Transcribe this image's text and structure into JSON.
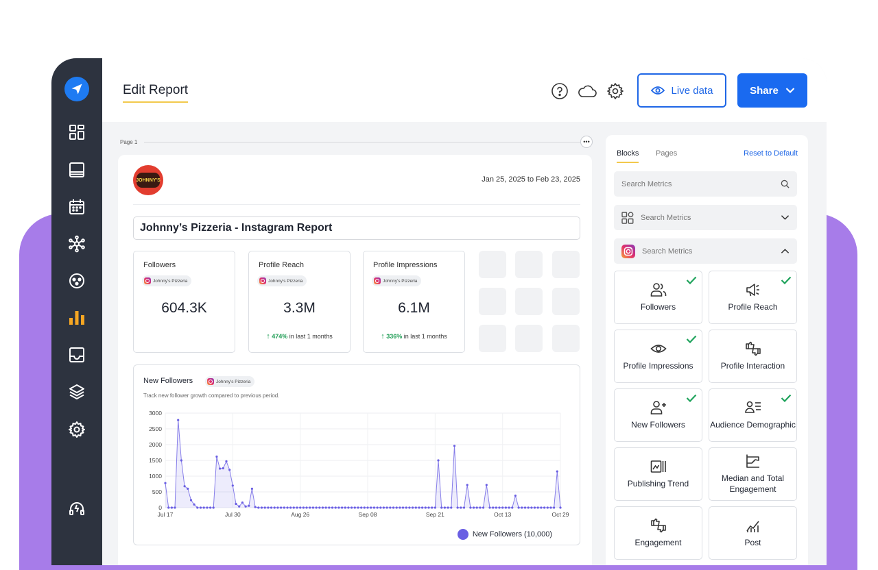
{
  "app": {
    "title": "Edit Report",
    "live_data_label": "Live data",
    "share_label": "Share"
  },
  "sidebar": {
    "items": [
      {
        "name": "dashboard",
        "icon": "dashboard-icon"
      },
      {
        "name": "posts",
        "icon": "posts-icon"
      },
      {
        "name": "calendar",
        "icon": "calendar-icon"
      },
      {
        "name": "network",
        "icon": "network-icon"
      },
      {
        "name": "engage",
        "icon": "engage-icon"
      },
      {
        "name": "reports",
        "icon": "bar-chart-icon",
        "active": true
      },
      {
        "name": "inbox",
        "icon": "inbox-icon"
      },
      {
        "name": "layers",
        "icon": "layers-icon"
      },
      {
        "name": "settings",
        "icon": "gear-icon"
      },
      {
        "name": "support",
        "icon": "headset-icon"
      }
    ]
  },
  "canvas": {
    "page_label": "Page 1"
  },
  "report": {
    "logo_text": "JOHNNY'S",
    "date_range": "Jan 25, 2025 to Feb 23, 2025",
    "title": "Johnny’s Pizzeria - Instagram Report",
    "account_chip": "Johnny's Pizzeria",
    "metrics": [
      {
        "label": "Followers",
        "value": "604.3K",
        "change": "",
        "change_suffix": ""
      },
      {
        "label": "Profile Reach",
        "value": "3.3M",
        "change": "474%",
        "change_suffix": " in last 1 months"
      },
      {
        "label": "Profile Impressions",
        "value": "6.1M",
        "change": "336%",
        "change_suffix": " in last 1 months"
      }
    ],
    "chart": {
      "title": "New Followers",
      "subtitle": "Track new follower growth compared to previous period.",
      "legend_label": "New Followers (10,000)"
    }
  },
  "chart_data": {
    "type": "area",
    "title": "New Followers",
    "y_ticks": [
      "3000",
      "2500",
      "2000",
      "1500",
      "1000",
      "500",
      "0"
    ],
    "ylim": [
      0,
      3000
    ],
    "x_ticks": [
      "Jul 17",
      "Jul 30",
      "Aug 26",
      "Sep 08",
      "Sep 21",
      "Oct 13",
      "Oct 29"
    ],
    "series": [
      {
        "name": "New Followers (10,000)",
        "color": "#6a5fe3",
        "values": [
          780,
          0,
          0,
          0,
          2780,
          1500,
          680,
          600,
          240,
          100,
          0,
          0,
          0,
          0,
          0,
          0,
          1620,
          1240,
          1250,
          1470,
          1200,
          700,
          120,
          40,
          160,
          40,
          60,
          600,
          20,
          0,
          0,
          0,
          0,
          0,
          0,
          0,
          0,
          0,
          0,
          0,
          0,
          0,
          0,
          0,
          0,
          0,
          0,
          0,
          0,
          0,
          0,
          0,
          0,
          0,
          0,
          0,
          0,
          0,
          0,
          0,
          0,
          0,
          0,
          0,
          0,
          0,
          0,
          0,
          0,
          0,
          0,
          0,
          0,
          0,
          0,
          0,
          0,
          0,
          0,
          0,
          0,
          0,
          0,
          0,
          0,
          1500,
          0,
          0,
          0,
          0,
          1960,
          0,
          0,
          0,
          720,
          0,
          0,
          0,
          0,
          0,
          720,
          0,
          0,
          0,
          0,
          0,
          0,
          0,
          0,
          380,
          0,
          0,
          0,
          0,
          0,
          0,
          0,
          0,
          0,
          0,
          0,
          0,
          1150,
          0
        ]
      }
    ]
  },
  "panel": {
    "tabs": [
      "Blocks",
      "Pages"
    ],
    "reset_label": "Reset to Default",
    "search_placeholder": "Search Metrics",
    "group1_label": "Search Metrics",
    "group2_label": "Search Metrics",
    "blocks": [
      {
        "label": "Followers",
        "checked": true,
        "icon": "followers-icon"
      },
      {
        "label": "Profile Reach",
        "checked": true,
        "icon": "megaphone-icon"
      },
      {
        "label": "Profile Impressions",
        "checked": true,
        "icon": "eye-icon"
      },
      {
        "label": "Profile Interaction",
        "checked": false,
        "icon": "thumbs-icon"
      },
      {
        "label": "New Followers",
        "checked": true,
        "icon": "new-followers-icon"
      },
      {
        "label": "Audience Demographic",
        "checked": true,
        "icon": "audience-icon"
      },
      {
        "label": "Publishing Trend",
        "checked": false,
        "icon": "publishing-icon"
      },
      {
        "label": "Median and Total Engagement",
        "checked": false,
        "icon": "engagement-chart-icon"
      },
      {
        "label": "Engagement",
        "checked": false,
        "icon": "thumbs-icon"
      },
      {
        "label": "Post",
        "checked": false,
        "icon": "post-chart-icon"
      }
    ]
  }
}
